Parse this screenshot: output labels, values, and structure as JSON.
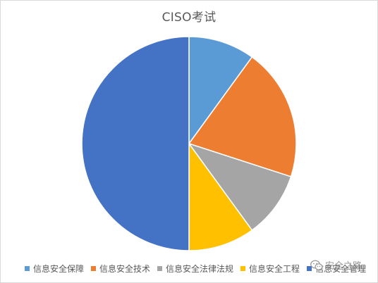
{
  "chart_data": {
    "type": "pie",
    "title": "CISO考试",
    "categories": [
      "信息安全保障",
      "信息安全技术",
      "信息安全法律法规",
      "信息安全工程",
      "信息安全管理"
    ],
    "values": [
      10,
      20,
      10,
      10,
      50
    ],
    "colors": [
      "#5b9bd5",
      "#ed7d31",
      "#a5a5a5",
      "#ffc000",
      "#4472c4"
    ],
    "start_angle_deg": 0,
    "direction": "clockwise",
    "legend": "bottom"
  },
  "legend_labels": [
    "信息安全保障",
    "信息安全技术",
    "信息安全法律法规",
    "信息安全工程",
    "信息安全管理"
  ],
  "watermark": {
    "icon": "wechat-icon",
    "text": "安全之路"
  }
}
